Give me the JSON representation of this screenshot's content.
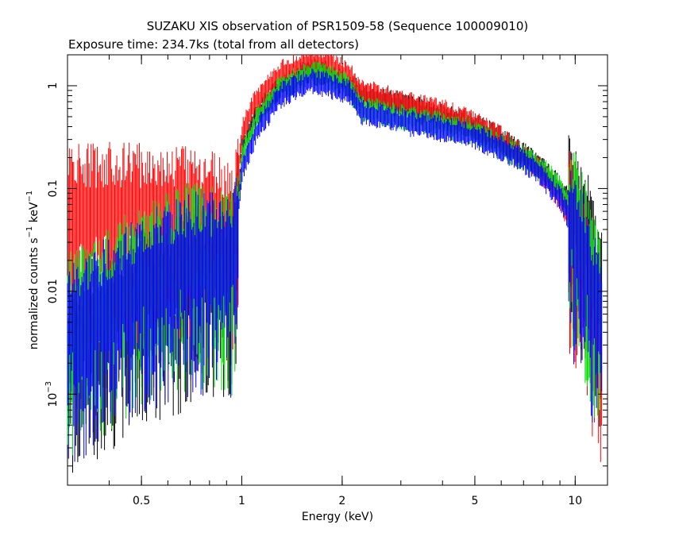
{
  "chart_data": {
    "type": "line",
    "title": "SUZAKU XIS observation of PSR1509-58 (Sequence 100009010)",
    "subtitle": "Exposure time: 234.7ks (total from all detectors)",
    "xlabel": "Energy (keV)",
    "ylabel_main": "normalized counts s",
    "ylabel_exp1": "−1",
    "ylabel_mid": " keV",
    "ylabel_exp2": "−1",
    "x_scale": "log",
    "y_scale": "log",
    "xlim": [
      0.3,
      12.5
    ],
    "ylim": [
      0.00013,
      2.0
    ],
    "x_ticks": [
      {
        "value": 0.5,
        "label": "0.5"
      },
      {
        "value": 1,
        "label": "1"
      },
      {
        "value": 2,
        "label": "2"
      },
      {
        "value": 5,
        "label": "5"
      },
      {
        "value": 10,
        "label": "10"
      }
    ],
    "y_ticks": [
      {
        "value": 1,
        "label": "1"
      },
      {
        "value": 0.1,
        "label": "0.1"
      },
      {
        "value": 0.01,
        "label": "0.01"
      },
      {
        "value": 0.001,
        "label_base": "10",
        "label_exp": "−3"
      }
    ],
    "grid": false,
    "series": [
      {
        "color": "#000000",
        "values": [
          [
            0.3,
            0.003
          ],
          [
            0.5,
            0.01
          ],
          [
            0.7,
            0.015
          ],
          [
            0.95,
            0.02
          ],
          [
            1.0,
            0.25
          ],
          [
            1.1,
            0.5
          ],
          [
            1.3,
            0.95
          ],
          [
            1.6,
            1.4
          ],
          [
            1.85,
            1.25
          ],
          [
            2.1,
            1.0
          ],
          [
            2.3,
            0.8
          ],
          [
            3.0,
            0.65
          ],
          [
            4.0,
            0.5
          ],
          [
            5.0,
            0.4
          ],
          [
            6.0,
            0.3
          ],
          [
            7.0,
            0.21
          ],
          [
            8.0,
            0.15
          ],
          [
            9.0,
            0.1
          ],
          [
            10.0,
            0.06
          ],
          [
            11.0,
            0.03
          ],
          [
            12.0,
            0.008
          ]
        ]
      },
      {
        "color": "#ff0000",
        "values": [
          [
            0.3,
            0.06
          ],
          [
            0.5,
            0.06
          ],
          [
            0.7,
            0.06
          ],
          [
            0.95,
            0.04
          ],
          [
            1.0,
            0.35
          ],
          [
            1.1,
            0.7
          ],
          [
            1.3,
            1.3
          ],
          [
            1.6,
            1.75
          ],
          [
            1.85,
            1.6
          ],
          [
            2.1,
            1.25
          ],
          [
            2.3,
            0.85
          ],
          [
            3.0,
            0.7
          ],
          [
            4.0,
            0.55
          ],
          [
            5.0,
            0.42
          ],
          [
            6.0,
            0.3
          ],
          [
            7.0,
            0.2
          ],
          [
            8.0,
            0.14
          ],
          [
            9.0,
            0.08
          ],
          [
            10.0,
            0.04
          ],
          [
            11.0,
            0.012
          ],
          [
            12.0,
            0.003
          ]
        ]
      },
      {
        "color": "#00dd00",
        "values": [
          [
            0.3,
            0.005
          ],
          [
            0.5,
            0.015
          ],
          [
            0.7,
            0.025
          ],
          [
            0.95,
            0.02
          ],
          [
            1.0,
            0.2
          ],
          [
            1.1,
            0.45
          ],
          [
            1.3,
            0.95
          ],
          [
            1.6,
            1.3
          ],
          [
            1.85,
            1.2
          ],
          [
            2.1,
            0.95
          ],
          [
            2.3,
            0.6
          ],
          [
            3.0,
            0.5
          ],
          [
            4.0,
            0.42
          ],
          [
            5.0,
            0.35
          ],
          [
            6.0,
            0.25
          ],
          [
            7.0,
            0.2
          ],
          [
            8.0,
            0.15
          ],
          [
            9.0,
            0.1
          ],
          [
            10.0,
            0.05
          ],
          [
            11.0,
            0.02
          ],
          [
            12.0,
            0.006
          ]
        ]
      },
      {
        "color": "#0000ff",
        "values": [
          [
            0.3,
            0.004
          ],
          [
            0.5,
            0.012
          ],
          [
            0.7,
            0.02
          ],
          [
            0.95,
            0.02
          ],
          [
            1.0,
            0.15
          ],
          [
            1.1,
            0.35
          ],
          [
            1.3,
            0.8
          ],
          [
            1.6,
            1.1
          ],
          [
            1.85,
            1.0
          ],
          [
            2.1,
            0.85
          ],
          [
            2.3,
            0.55
          ],
          [
            3.0,
            0.45
          ],
          [
            4.0,
            0.38
          ],
          [
            5.0,
            0.32
          ],
          [
            6.0,
            0.25
          ],
          [
            7.0,
            0.19
          ],
          [
            8.0,
            0.13
          ],
          [
            9.0,
            0.08
          ],
          [
            10.0,
            0.04
          ],
          [
            11.0,
            0.015
          ],
          [
            12.0,
            0.004
          ]
        ]
      }
    ]
  }
}
